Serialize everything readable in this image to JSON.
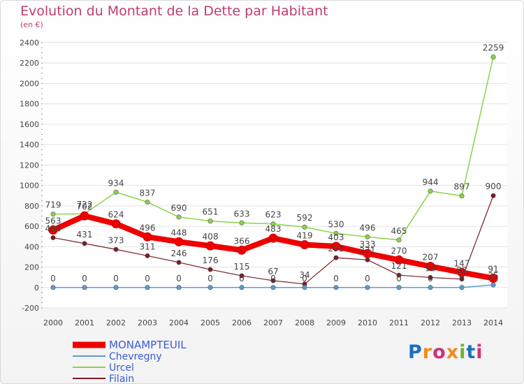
{
  "title": "Evolution du Montant de la Dette par Habitant",
  "subtitle": "(en €)",
  "logo": {
    "text": "Proxiti",
    "colors": [
      "#1b6fc4",
      "#f08c1c",
      "#d1307a",
      "#f08c1c",
      "#6ab42d",
      "#1b6fc4",
      "#d1307a"
    ]
  },
  "chart_data": {
    "type": "line",
    "title": "Evolution du Montant de la Dette par Habitant",
    "subtitle": "(en €)",
    "xlabel": "",
    "ylabel": "",
    "x": [
      "2000",
      "2001",
      "2002",
      "2003",
      "2004",
      "2005",
      "2006",
      "2007",
      "2008",
      "2009",
      "2010",
      "2011",
      "2012",
      "2013",
      "2014"
    ],
    "ylim": [
      -200,
      2400
    ],
    "yticks": [
      -200,
      0,
      200,
      400,
      600,
      800,
      1000,
      1200,
      1400,
      1600,
      1800,
      2000,
      2200,
      2400
    ],
    "grid": true,
    "legend": "bottom-left",
    "series": [
      {
        "name": "MONAMPTEUIL",
        "color": "#ee0000",
        "width": 8,
        "values": [
          563,
          702,
          624,
          496,
          448,
          408,
          366,
          483,
          419,
          403,
          333,
          270,
          207,
          147,
          91
        ]
      },
      {
        "name": "Chevregny",
        "color": "#5b9bd5",
        "width": 1.5,
        "values": [
          0,
          0,
          0,
          0,
          0,
          0,
          0,
          0,
          0,
          0,
          0,
          0,
          0,
          0,
          25
        ]
      },
      {
        "name": "Urcel",
        "color": "#88d44a",
        "width": 1.5,
        "values": [
          719,
          722,
          934,
          837,
          690,
          651,
          633,
          623,
          592,
          530,
          496,
          465,
          944,
          897,
          2259
        ]
      },
      {
        "name": "Filain",
        "color": "#7a1c28",
        "width": 1.2,
        "values": [
          488,
          431,
          373,
          311,
          246,
          176,
          115,
          67,
          34,
          292,
          271,
          121,
          98,
          82,
          900
        ]
      }
    ],
    "data_labels": [
      [
        "563",
        "702",
        "624",
        "496",
        "448",
        "408",
        "366",
        "483",
        "419",
        "403",
        "333",
        "270",
        "207",
        "147",
        "91"
      ],
      [
        "0",
        "0",
        "0",
        "0",
        "0",
        "0",
        "0",
        "0",
        "0",
        "0",
        "0",
        "0",
        "0",
        "0",
        "25"
      ],
      [
        "719",
        "722",
        "934",
        "837",
        "690",
        "651",
        "633",
        "623",
        "592",
        "530",
        "496",
        "465",
        "944",
        "897",
        "2259"
      ],
      [
        "488",
        "431",
        "373",
        "311",
        "246",
        "176",
        "115",
        "67",
        "34",
        "292",
        "271",
        "121",
        "98",
        "82",
        "900"
      ]
    ]
  }
}
